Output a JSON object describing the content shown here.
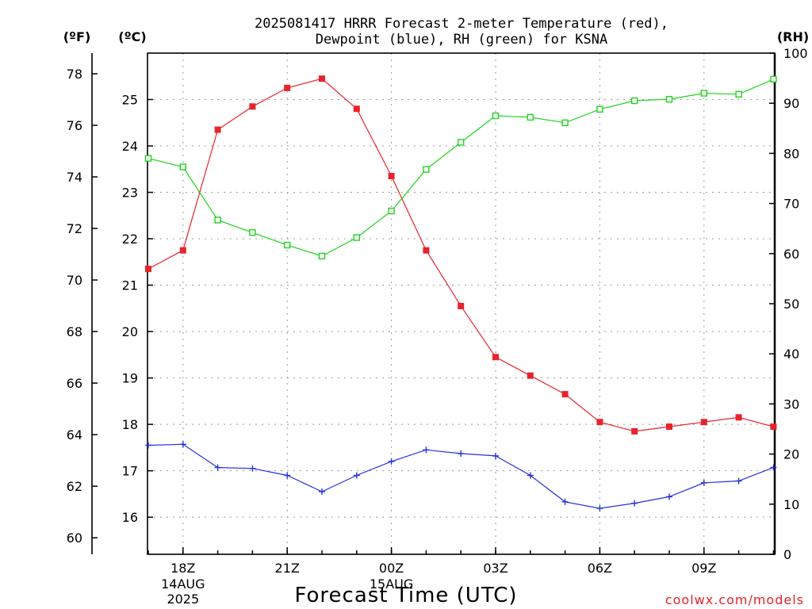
{
  "chart_data": {
    "type": "line",
    "title_line1": "2025081417 HRRR Forecast 2-meter Temperature (red),",
    "title_line2": "Dewpoint (blue), RH (green) for KSNA",
    "xlabel": "Forecast Time (UTC)",
    "credit": "coolwx.com/models",
    "unit_f": "(ºF)",
    "unit_c": "(ºC)",
    "unit_rh": "(RH)",
    "x": [
      "17Z",
      "18Z",
      "19Z",
      "20Z",
      "21Z",
      "22Z",
      "23Z",
      "00Z",
      "01Z",
      "02Z",
      "03Z",
      "04Z",
      "05Z",
      "06Z",
      "07Z",
      "08Z",
      "09Z",
      "10Z",
      "11Z"
    ],
    "xticks": [
      {
        "idx": 1,
        "label": "18Z",
        "date": "14AUG",
        "year": "2025"
      },
      {
        "idx": 4,
        "label": "21Z"
      },
      {
        "idx": 7,
        "label": "00Z",
        "date": "15AUG"
      },
      {
        "idx": 10,
        "label": "03Z"
      },
      {
        "idx": 13,
        "label": "06Z"
      },
      {
        "idx": 16,
        "label": "09Z"
      }
    ],
    "left_f_ticks": [
      60,
      62,
      64,
      66,
      68,
      70,
      72,
      74,
      76,
      78
    ],
    "left_c_ticks": [
      16,
      17,
      18,
      19,
      20,
      21,
      22,
      23,
      24,
      25
    ],
    "right_rh_ticks": [
      0,
      10,
      20,
      30,
      40,
      50,
      60,
      70,
      80,
      90,
      100
    ],
    "ylim_c": [
      15.2,
      26.0
    ],
    "ylim_rh": [
      0,
      100
    ],
    "series": [
      {
        "name": "Temperature",
        "color": "#e8232b",
        "marker": "filled-square",
        "axis": "celsius",
        "values": [
          21.35,
          21.75,
          24.35,
          24.85,
          25.25,
          25.45,
          24.8,
          23.35,
          21.75,
          20.55,
          19.45,
          19.05,
          18.65,
          18.05,
          17.85,
          17.95,
          18.05,
          18.15,
          17.95
        ]
      },
      {
        "name": "Dewpoint",
        "color": "#2431e0",
        "marker": "plus",
        "axis": "celsius",
        "values": [
          17.55,
          17.57,
          17.07,
          17.05,
          16.9,
          16.55,
          16.9,
          17.2,
          17.45,
          17.37,
          17.32,
          16.9,
          16.33,
          16.19,
          16.3,
          16.44,
          16.74,
          16.78,
          17.07
        ]
      },
      {
        "name": "RH",
        "color": "#1ed41e",
        "marker": "open-square",
        "axis": "rh",
        "values": [
          79,
          77.3,
          66.7,
          64.2,
          61.7,
          59.5,
          63.2,
          68.5,
          76.8,
          82.2,
          87.5,
          87.2,
          86.1,
          88.8,
          90.5,
          90.8,
          92,
          91.8,
          94.8
        ]
      }
    ]
  }
}
